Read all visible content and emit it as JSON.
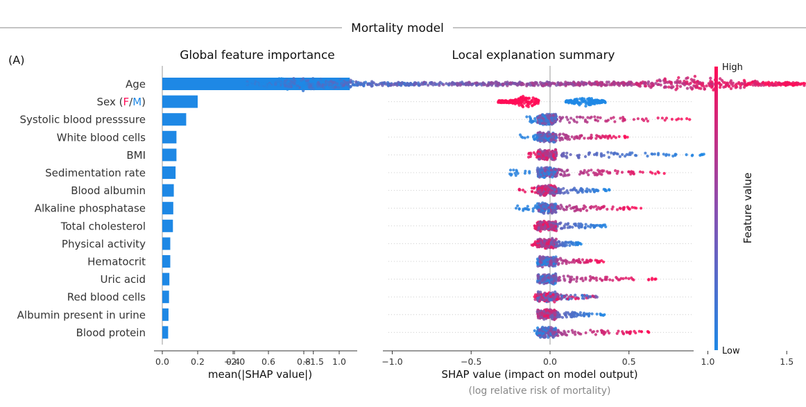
{
  "figure": {
    "title": "Mortality model",
    "panel_label": "(A)"
  },
  "colors": {
    "low": "#1e88e5",
    "high": "#ff0d57",
    "bar": "#1e88e5"
  },
  "chart_data": [
    {
      "type": "bar",
      "orientation": "horizontal",
      "title": "Global feature importance",
      "xlabel": "mean(|SHAP value|)",
      "xlim": [
        0,
        1.1
      ],
      "xticks": [
        0.0,
        0.2,
        0.4,
        0.6,
        0.8,
        1.0
      ],
      "xtick_labels": [
        "0.0",
        "0.2",
        "0.4",
        "0.6",
        "0.8",
        "1.0"
      ],
      "categories": [
        "Age",
        "Sex (F/M)",
        "Systolic blood presssure",
        "White blood cells",
        "BMI",
        "Sedimentation rate",
        "Blood albumin",
        "Alkaline phosphatase",
        "Total cholesterol",
        "Physical activity",
        "Hematocrit",
        "Uric acid",
        "Red blood cells",
        "Albumin present in urine",
        "Blood protein"
      ],
      "values": [
        1.06,
        0.2,
        0.135,
        0.08,
        0.08,
        0.075,
        0.065,
        0.062,
        0.06,
        0.045,
        0.045,
        0.04,
        0.038,
        0.035,
        0.033
      ]
    },
    {
      "type": "scatter",
      "subtype": "beeswarm",
      "title": "Local explanation summary",
      "xlabel": "SHAP value (impact on model output)",
      "xlabel_note": "(log relative risk of mortality)",
      "xlim": [
        -2.2,
        1.8
      ],
      "xticks": [
        -2.0,
        -1.5,
        -1.0,
        -0.5,
        0.0,
        0.5,
        1.0,
        1.5
      ],
      "xtick_labels": [
        "−2.0",
        "−1.5",
        "−1.0",
        "−0.5",
        "0.0",
        "0.5",
        "1.0",
        "1.5"
      ],
      "colorbar": {
        "label": "Feature value",
        "high_label": "High",
        "low_label": "Low"
      },
      "features": [
        {
          "name": "Age",
          "min": -1.93,
          "max": 1.65,
          "mode": "age"
        },
        {
          "name": "Sex (F/M)",
          "min": -0.35,
          "max": 0.35,
          "mode": "sex"
        },
        {
          "name": "Systolic blood presssure",
          "min": -0.15,
          "max": 0.9,
          "mode": "hr"
        },
        {
          "name": "White blood cells",
          "min": -0.2,
          "max": 0.5,
          "mode": "hr"
        },
        {
          "name": "BMI",
          "min": -0.15,
          "max": 0.98,
          "mode": "bmi"
        },
        {
          "name": "Sedimentation rate",
          "min": -0.27,
          "max": 0.75,
          "mode": "hr"
        },
        {
          "name": "Blood albumin",
          "min": -0.2,
          "max": 0.38,
          "mode": "lr"
        },
        {
          "name": "Alkaline phosphatase",
          "min": -0.23,
          "max": 0.58,
          "mode": "hr"
        },
        {
          "name": "Total cholesterol",
          "min": -0.1,
          "max": 0.38,
          "mode": "lr"
        },
        {
          "name": "Physical activity",
          "min": -0.12,
          "max": 0.2,
          "mode": "lr"
        },
        {
          "name": "Hematocrit",
          "min": -0.05,
          "max": 0.35,
          "mode": "hr"
        },
        {
          "name": "Uric acid",
          "min": -0.08,
          "max": 0.68,
          "mode": "hr"
        },
        {
          "name": "Red blood cells",
          "min": -0.1,
          "max": 0.3,
          "mode": "mix"
        },
        {
          "name": "Albumin present in urine",
          "min": -0.05,
          "max": 0.35,
          "mode": "lr"
        },
        {
          "name": "Blood protein",
          "min": -0.1,
          "max": 0.63,
          "mode": "hr"
        }
      ]
    }
  ]
}
